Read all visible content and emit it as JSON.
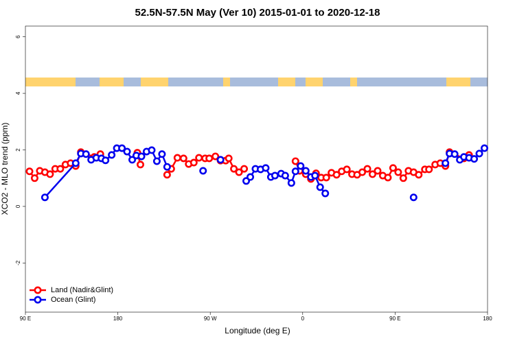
{
  "chart_data": {
    "type": "line",
    "title": "52.5N-57.5N May (Ver 10)   2015-01-01 to 2020-12-18",
    "x_label": "Longitude (deg E)",
    "y_label": "XCO2 - MLO trend (ppm)",
    "xlim": [
      90,
      540
    ],
    "ylim": [
      -3.74,
      6.38
    ],
    "xticks": [
      {
        "value": 90,
        "label": "90 E"
      },
      180,
      {
        "value": 270,
        "label": "90 W"
      },
      {
        "value": 360,
        "label": "0"
      },
      {
        "value": 450,
        "label": "90 E"
      },
      {
        "value": 540,
        "label": "180"
      }
    ],
    "yticks": [
      -2,
      0,
      2,
      4,
      6
    ],
    "legend": "bottom-left",
    "series": [
      {
        "name": "Land (Nadir&Glint)",
        "color": "#ff0000",
        "x": [
          94,
          99,
          104,
          109,
          114,
          119,
          124,
          129,
          134,
          139,
          144,
          157,
          163,
          null,
          199,
          202,
          null,
          228,
          232,
          238,
          244,
          249,
          254,
          259,
          265,
          269,
          275,
          280,
          285,
          288,
          293,
          298,
          303,
          null,
          353,
          357,
          363,
          368,
          373,
          378,
          383,
          388,
          393,
          398,
          403,
          408,
          413,
          418,
          423,
          428,
          433,
          438,
          443,
          448,
          453,
          458,
          463,
          468,
          473,
          479,
          483,
          489,
          494,
          499,
          503,
          517,
          522
        ],
        "values": [
          1.24,
          1.0,
          1.26,
          1.21,
          1.14,
          1.33,
          1.33,
          1.48,
          1.53,
          1.43,
          1.92,
          1.75,
          1.85,
          null,
          1.9,
          1.48,
          null,
          1.12,
          1.33,
          1.72,
          1.7,
          1.5,
          1.55,
          1.72,
          1.7,
          1.7,
          1.77,
          1.62,
          1.62,
          1.7,
          1.33,
          1.21,
          1.33,
          null,
          1.6,
          1.26,
          1.14,
          0.97,
          1.17,
          1.02,
          1.02,
          1.19,
          1.12,
          1.24,
          1.31,
          1.14,
          1.12,
          1.21,
          1.33,
          1.14,
          1.26,
          1.09,
          1.02,
          1.36,
          1.21,
          1.0,
          1.26,
          1.21,
          1.12,
          1.31,
          1.31,
          1.48,
          1.53,
          1.43,
          1.92,
          1.7,
          1.82
        ]
      },
      {
        "name": "Ocean (Glint)",
        "color": "#0000ee",
        "x": [
          109,
          139,
          144,
          149,
          154,
          159,
          164,
          168,
          174,
          179,
          184,
          189,
          194,
          198,
          203,
          208,
          213,
          218,
          223,
          228,
          null,
          263,
          null,
          280,
          null,
          305,
          309,
          314,
          319,
          324,
          329,
          333,
          339,
          343,
          349,
          353,
          358,
          363,
          368,
          372,
          377,
          382,
          null,
          468,
          null,
          499,
          503,
          508,
          513,
          517,
          522,
          527,
          532,
          537
        ],
        "values": [
          0.32,
          1.53,
          1.87,
          1.85,
          1.65,
          1.72,
          1.7,
          1.63,
          1.82,
          2.06,
          2.06,
          1.94,
          1.65,
          1.8,
          1.77,
          1.94,
          1.99,
          1.6,
          1.85,
          1.4,
          null,
          1.26,
          null,
          1.65,
          null,
          0.9,
          1.04,
          1.33,
          1.31,
          1.36,
          1.04,
          1.09,
          1.16,
          1.09,
          0.83,
          1.24,
          1.43,
          1.26,
          1.04,
          1.09,
          0.68,
          0.46,
          null,
          0.32,
          null,
          1.53,
          1.87,
          1.85,
          1.65,
          1.75,
          1.72,
          1.68,
          1.87,
          2.06
        ]
      }
    ]
  }
}
